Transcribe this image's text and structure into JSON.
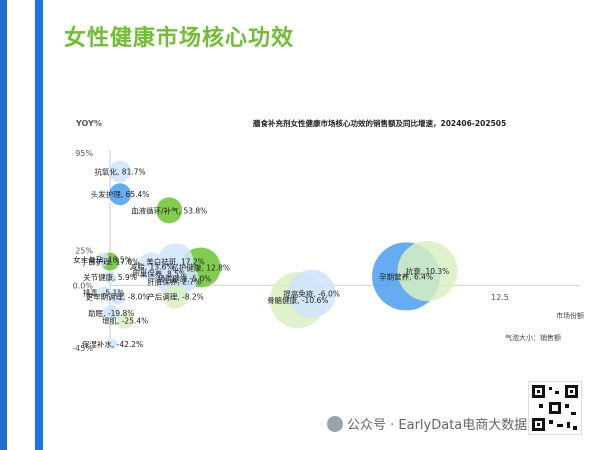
{
  "page": {
    "title": "女性健康市场核心功效"
  },
  "watermark": {
    "text": "公众号 · EarlyData电商大数据"
  },
  "chart_data": {
    "type": "bubble",
    "title": "膳食补充剂女性健康市场核心功效的销售额及同比增速，202406-202505",
    "ylabel": "YOY%",
    "y_ticks": [
      "95%",
      "25%",
      "0.0%",
      "-45%"
    ],
    "ylim": [
      -45,
      95
    ],
    "x_axis_label": "市场份额",
    "x_tick_label": "12.5",
    "size_note": "气泡大小：销售额",
    "colors": {
      "blue": "#4a9ef0",
      "green": "#6cc431",
      "light_blue": "#cfe5fb",
      "light_green": "#d8f0c2"
    },
    "points": [
      {
        "label": "抗氧化, 81.7%",
        "x": 0.8,
        "y": 81.7,
        "r": 11,
        "color": "light_blue"
      },
      {
        "label": "头发护理, 65.4%",
        "x": 0.8,
        "y": 65.4,
        "r": 11,
        "color": "blue"
      },
      {
        "label": "血液循环/补气, 53.8%",
        "x": 4.7,
        "y": 53.8,
        "r": 13,
        "color": "green"
      },
      {
        "label": "女士备孕, 18.5%",
        "x": -0.6,
        "y": 18.5,
        "r": 7,
        "color": "light_blue"
      },
      {
        "label": "手部护理, 17.0%",
        "x": 0.0,
        "y": 17.0,
        "r": 9,
        "color": "green"
      },
      {
        "label": "关节健康, 5.9%",
        "x": 0.0,
        "y": 5.9,
        "r": 6,
        "color": "light_blue"
      },
      {
        "label": "排毒, -5.1%",
        "x": -0.5,
        "y": -5.1,
        "r": 6,
        "color": "light_blue"
      },
      {
        "label": "更年期调理, -8.0%",
        "x": 0.6,
        "y": -8.0,
        "r": 8,
        "color": "light_blue"
      },
      {
        "label": "助眠, -19.8%",
        "x": 0.1,
        "y": -19.8,
        "r": 8,
        "color": "light_blue"
      },
      {
        "label": "增肌, -25.4%",
        "x": 1.2,
        "y": -25.4,
        "r": 8,
        "color": "light_green"
      },
      {
        "label": "保湿补水, -42.2%",
        "x": 0.2,
        "y": -42.2,
        "r": 5,
        "color": "light_blue"
      },
      {
        "label": "减脂, 13.6%",
        "x": 3.3,
        "y": 13.6,
        "r": 14,
        "color": "light_blue"
      },
      {
        "label": "卵巢保养, 8.5%",
        "x": 3.9,
        "y": 8.5,
        "r": 7,
        "color": "light_blue"
      },
      {
        "label": "美白祛斑, 17.2%",
        "x": 5.2,
        "y": 17.2,
        "r": 18,
        "color": "light_blue"
      },
      {
        "label": "肝脏保养, 2.7%",
        "x": 5.1,
        "y": 2.7,
        "r": 16,
        "color": "light_blue"
      },
      {
        "label": "肠胃健康, 5.0%",
        "x": 5.9,
        "y": 5.0,
        "r": 14,
        "color": "light_blue"
      },
      {
        "label": "产后调理, -8.2%",
        "x": 5.2,
        "y": -8.2,
        "r": 12,
        "color": "light_green"
      },
      {
        "label": "私护健康, 12.8%",
        "x": 7.2,
        "y": 12.8,
        "r": 20,
        "color": "green"
      },
      {
        "label": "提高免疫, -6.0%",
        "x": 16.0,
        "y": -6.0,
        "r": 24,
        "color": "light_blue"
      },
      {
        "label": "骨骼健康, -10.6%",
        "x": 14.9,
        "y": -10.6,
        "r": 28,
        "color": "light_green"
      },
      {
        "label": "孕期营养, 6.4%",
        "x": 23.5,
        "y": 6.4,
        "r": 34,
        "color": "blue"
      },
      {
        "label": "抗衰, 10.3%",
        "x": 25.2,
        "y": 10.3,
        "r": 30,
        "color": "light_green"
      }
    ]
  }
}
